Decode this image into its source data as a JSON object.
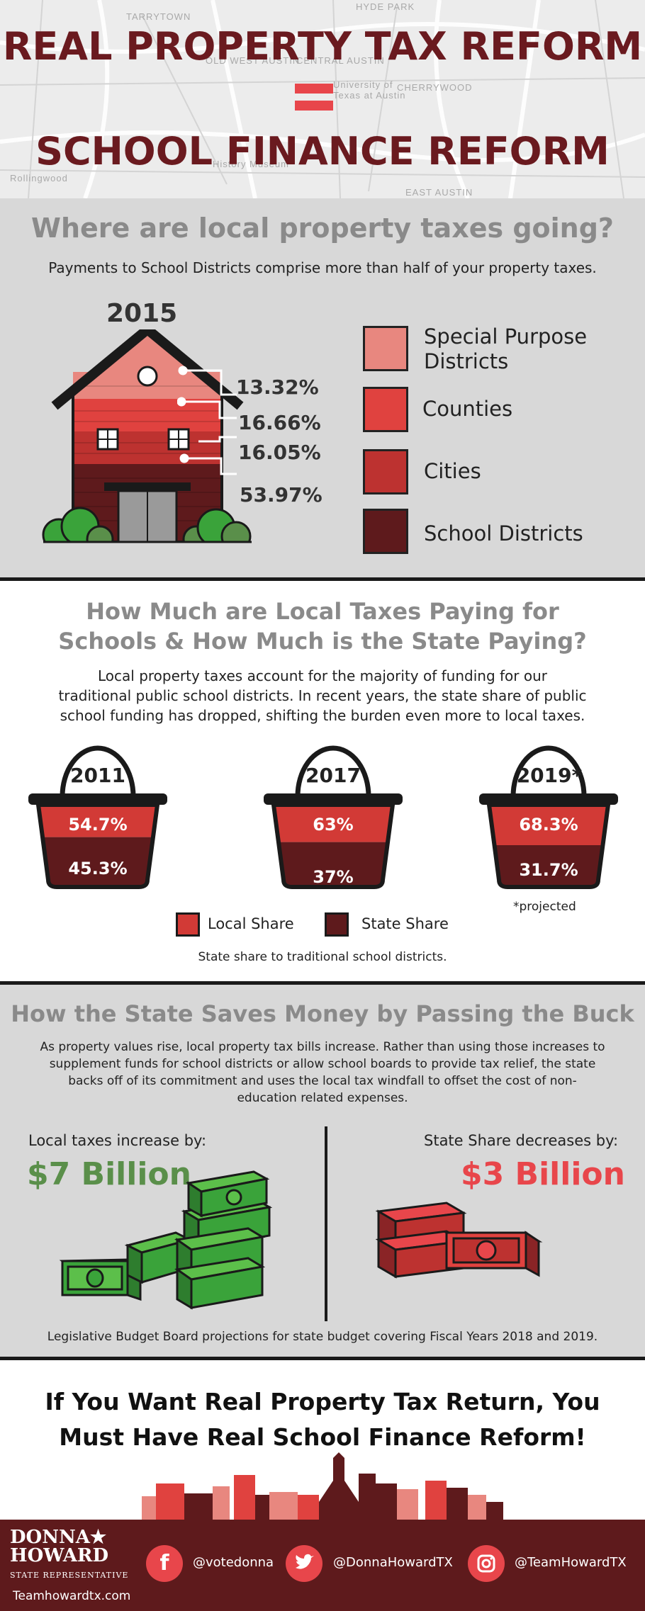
{
  "header": {
    "map_labels": [
      "TARRYTOWN",
      "HYDE PARK",
      "OLD WEST AUSTIN",
      "CENTRAL AUSTIN",
      "University of Texas at Austin",
      "CHERRYWOOD",
      "Rollingwood",
      "EAST AUSTIN",
      "History Museum"
    ],
    "title_line1": "REAL PROPERTY TAX REFORM",
    "title_line2": "SCHOOL FINANCE REFORM"
  },
  "section1": {
    "heading": "Where are local property taxes going?",
    "subheading": "Payments to School Districts comprise more than half of your property taxes.",
    "year": "2015",
    "percentages": [
      "13.32%",
      "16.66%",
      "16.05%",
      "53.97%"
    ],
    "legend": [
      {
        "label_line1": "Special Purpose",
        "label_line2": "Districts",
        "color": "#e8877f"
      },
      {
        "label_line1": "Counties",
        "label_line2": "",
        "color": "#e0423f"
      },
      {
        "label_line1": "Cities",
        "label_line2": "",
        "color": "#bd3230"
      },
      {
        "label_line1": "School Districts",
        "label_line2": "",
        "color": "#5e1a1c"
      }
    ]
  },
  "section2": {
    "heading_line1": "How Much are Local Taxes Paying for",
    "heading_line2": "Schools & How Much is the State Paying?",
    "body_line1": "Local property taxes account for the majority of funding for our",
    "body_line2": "traditional public school districts. In recent years, the state share of public",
    "body_line3": "school funding has dropped, shifting the burden even more to local taxes.",
    "buckets": [
      {
        "year": "2011",
        "local": "54.7%",
        "state": "45.3%",
        "local_share": 54.7
      },
      {
        "year": "2017",
        "local": "63%",
        "state": "37%",
        "local_share": 63
      },
      {
        "year": "2019*",
        "local": "68.3%",
        "state": "31.7%",
        "local_share": 68.3
      }
    ],
    "projected_note": "*projected",
    "legend_local": "Local Share",
    "legend_state": "State Share",
    "legend_local_color": "#d23a36",
    "legend_state_color": "#5e1a1c",
    "footnote": "State share to traditional school districts."
  },
  "section3": {
    "heading": "How the State Saves Money by Passing the Buck",
    "body_line1": "As property values rise, local property tax bills increase. Rather than using those increases to",
    "body_line2": "supplement funds for school districts or allow school boards to provide tax relief, the state",
    "body_line3": "backs off of its commitment and uses the local tax windfall to offset the cost of non-",
    "body_line4": "education related expenses.",
    "left_label": "Local taxes increase by:",
    "left_value": "$7 Billion",
    "left_color": "#5a8f4a",
    "right_label": "State Share decreases by:",
    "right_value": "$3 Billion",
    "right_color": "#e8464b",
    "footnote": "Legislative Budget Board projections for state budget covering Fiscal Years 2018 and 2019."
  },
  "section4": {
    "cta_line1": "If You Want Real Property Tax Return, You",
    "cta_line2": "Must Have Real School Finance Reform!"
  },
  "footer": {
    "logo_line1": "DONNA",
    "logo_line2": "HOWARD",
    "logo_sub": "STATE REPRESENTATIVE",
    "website": "Teamhowardtx.com",
    "facebook": "@votedonna",
    "twitter": "@DonnaHowardTX",
    "instagram": "@TeamHowardTX"
  }
}
